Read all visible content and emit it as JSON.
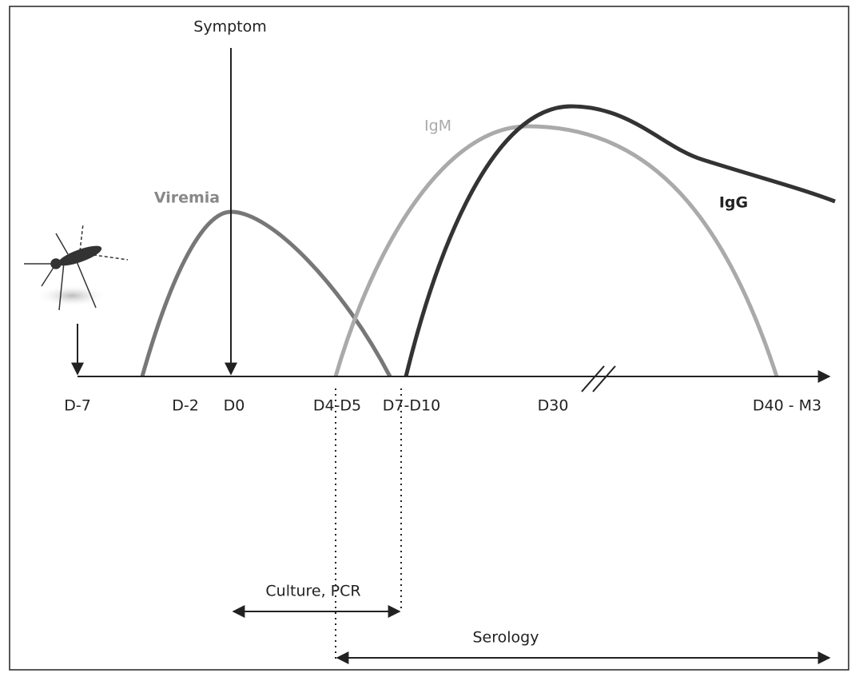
{
  "labels": {
    "symptom": "Symptom",
    "viremia": "Viremia",
    "igm": "IgM",
    "igg": "IgG"
  },
  "axis_labels": [
    "D-7",
    "D-2",
    "D0",
    "D4-D5",
    "D7-D10",
    "D30",
    "D40 - M3"
  ],
  "windows": {
    "culture_pcr": "Culture, PCR",
    "serology": "Serology"
  }
}
